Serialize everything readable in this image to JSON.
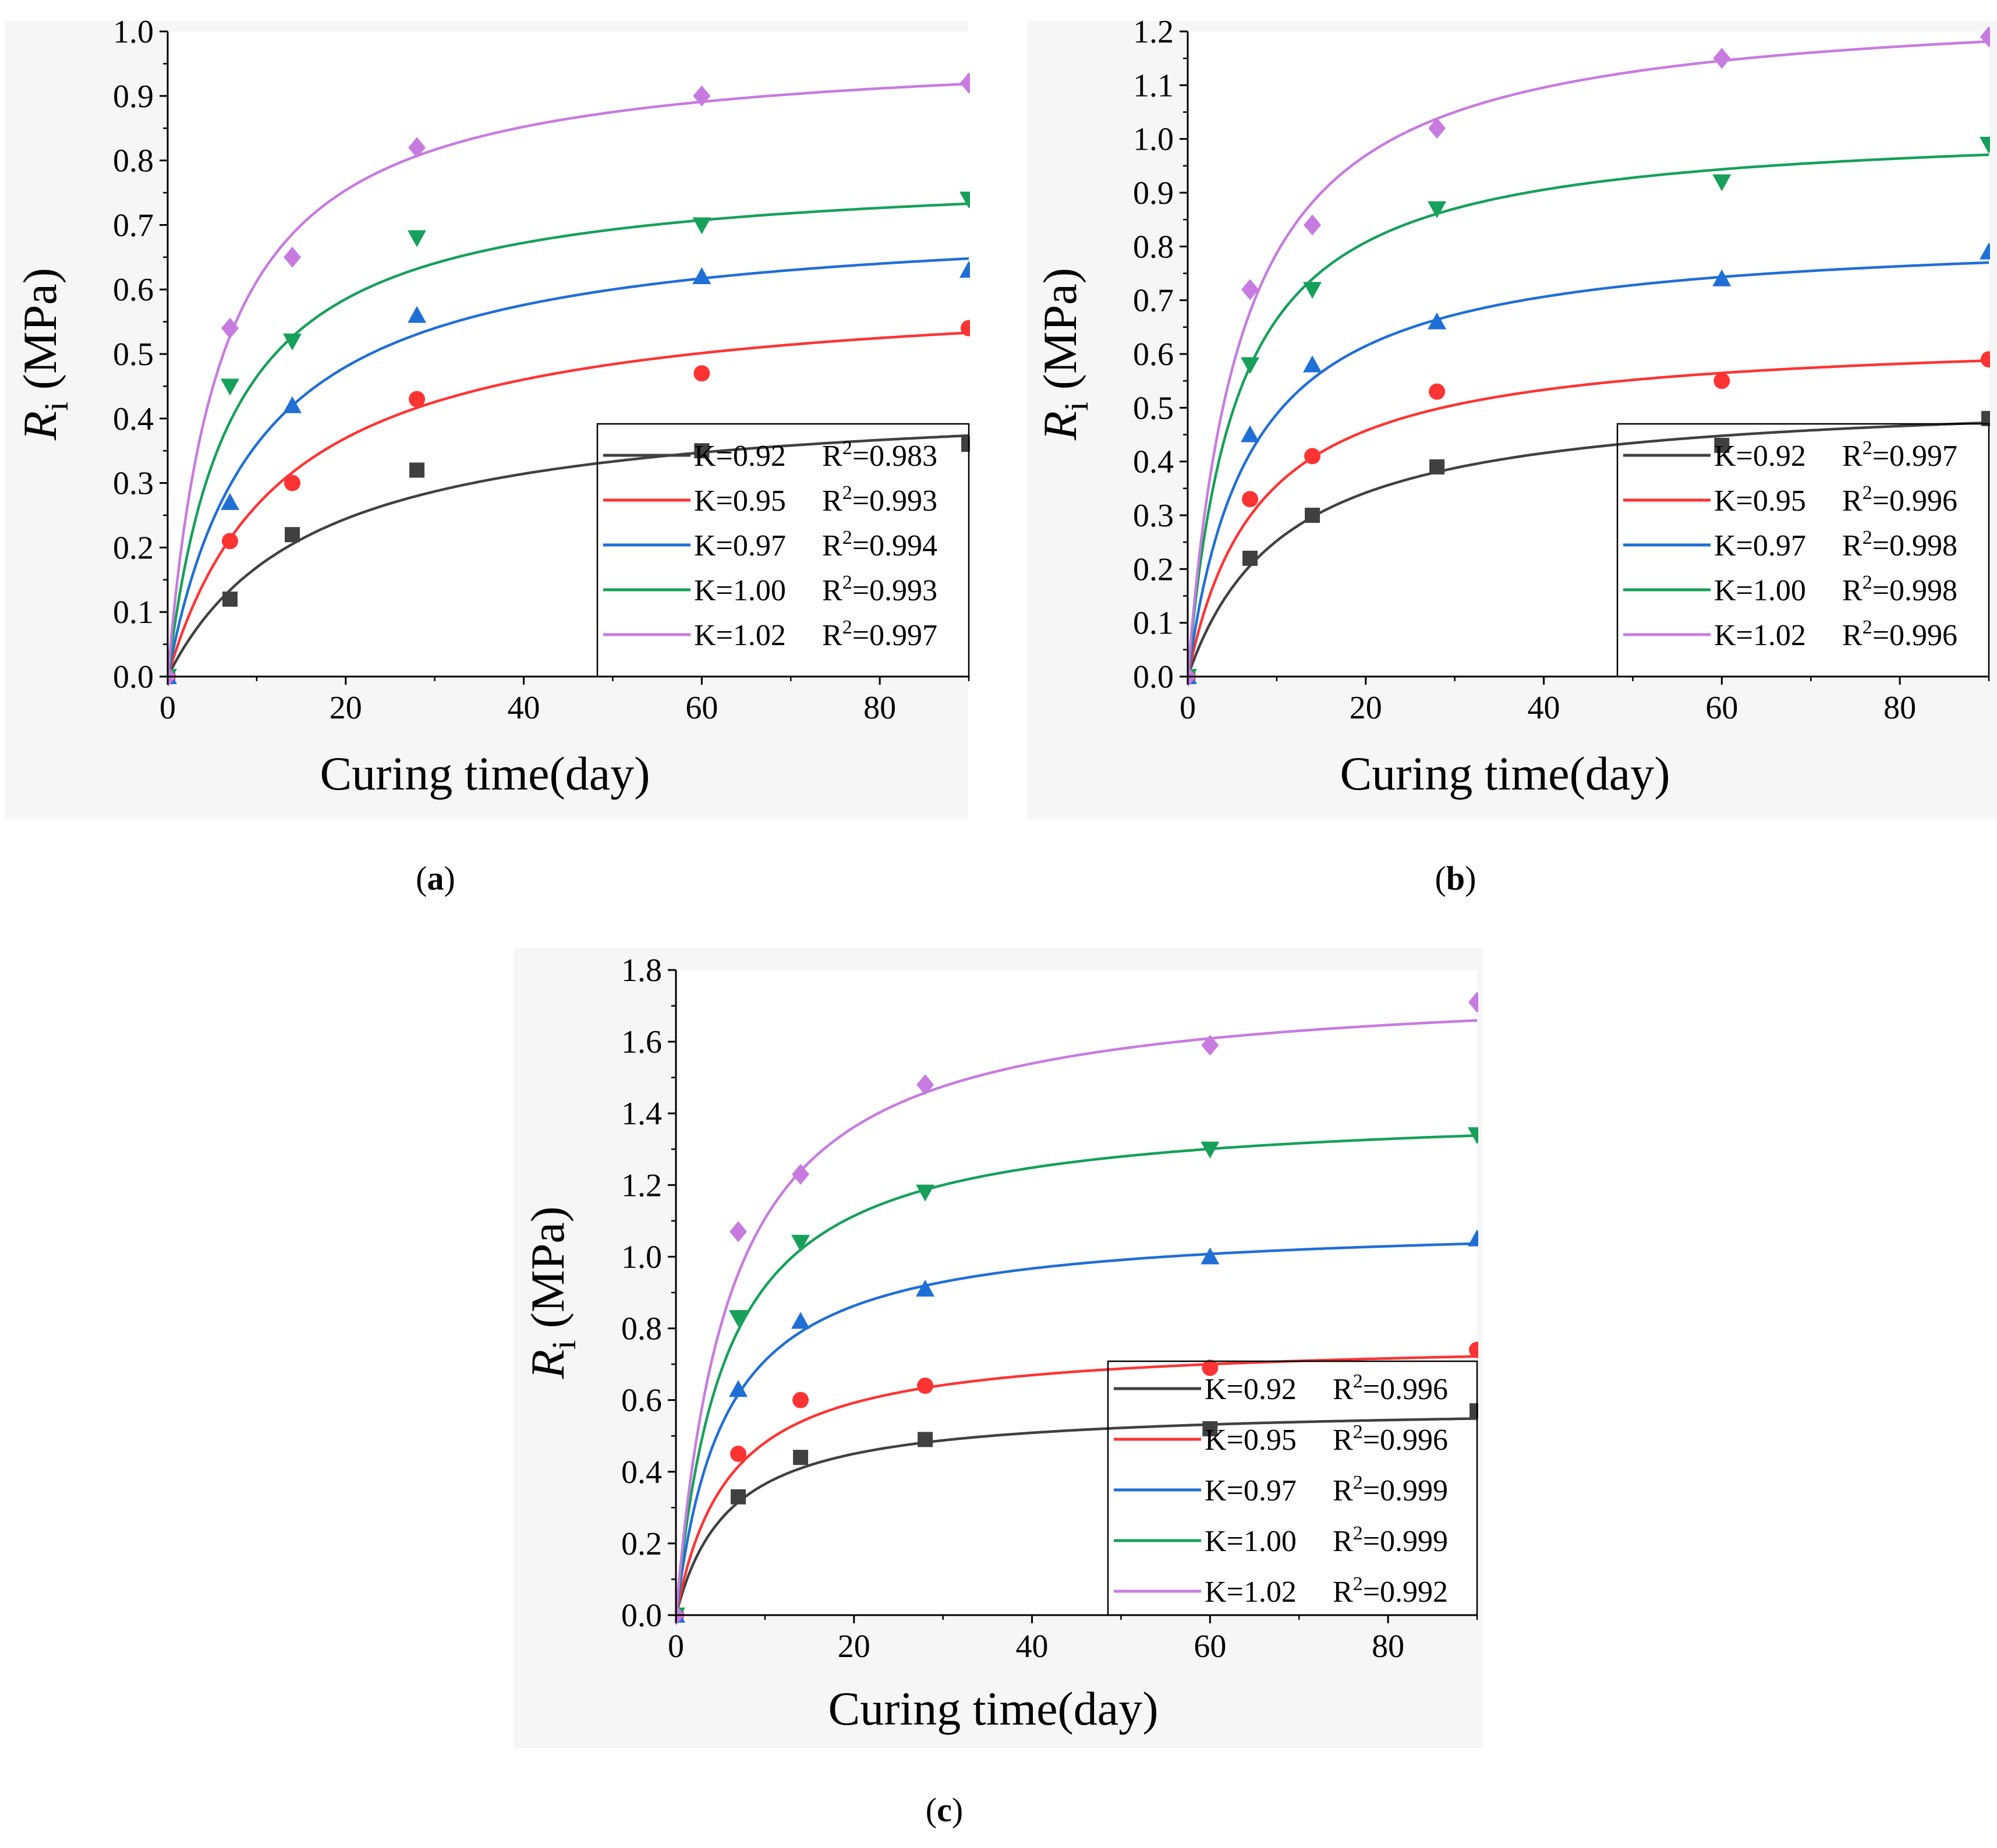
{
  "chart_data": [
    {
      "type": "scatter",
      "panel_label": "(a)",
      "xlabel": "Curing time(day)",
      "ylabel": "R",
      "ylabel_sub": "i",
      "ylabel_unit": " (MPa)",
      "xlim": [
        0,
        90
      ],
      "ylim": [
        0,
        1.0
      ],
      "xticks": [
        "0",
        "20",
        "40",
        "60",
        "80"
      ],
      "yticks": [
        "0.0",
        "0.1",
        "0.2",
        "0.3",
        "0.4",
        "0.5",
        "0.6",
        "0.7",
        "0.8",
        "0.9",
        "1.0"
      ],
      "legend_position": "bottom-right",
      "x": [
        0,
        7,
        14,
        28,
        60,
        90
      ],
      "series": [
        {
          "name": "K=0.92",
          "r2": "0.983",
          "color": "#404040",
          "marker": "square",
          "values": [
            0.0,
            0.12,
            0.22,
            0.32,
            0.35,
            0.36
          ],
          "fit": {
            "a": 0.44,
            "b": 16
          }
        },
        {
          "name": "K=0.95",
          "r2": "0.993",
          "color": "#ff3333",
          "marker": "circle",
          "values": [
            0.0,
            0.21,
            0.3,
            0.43,
            0.47,
            0.54
          ],
          "fit": {
            "a": 0.61,
            "b": 13
          }
        },
        {
          "name": "K=0.97",
          "r2": "0.994",
          "color": "#1f6fd6",
          "marker": "triangle-up",
          "values": [
            0.0,
            0.27,
            0.42,
            0.56,
            0.62,
            0.63
          ],
          "fit": {
            "a": 0.72,
            "b": 10
          }
        },
        {
          "name": "K=1.00",
          "r2": "0.993",
          "color": "#16a05a",
          "marker": "triangle-down",
          "values": [
            0.0,
            0.45,
            0.52,
            0.68,
            0.7,
            0.74
          ],
          "fit": {
            "a": 0.79,
            "b": 7
          }
        },
        {
          "name": "K=1.02",
          "r2": "0.997",
          "color": "#c77be0",
          "marker": "diamond",
          "values": [
            0.0,
            0.54,
            0.65,
            0.82,
            0.9,
            0.92
          ],
          "fit": {
            "a": 0.98,
            "b": 6
          }
        }
      ]
    },
    {
      "type": "scatter",
      "panel_label": "(b)",
      "xlabel": "Curing time(day)",
      "ylabel": "R",
      "ylabel_sub": "i",
      "ylabel_unit": " (MPa)",
      "xlim": [
        0,
        90
      ],
      "ylim": [
        0,
        1.2
      ],
      "xticks": [
        "0",
        "20",
        "40",
        "60",
        "80"
      ],
      "yticks": [
        "0.0",
        "0.1",
        "0.2",
        "0.3",
        "0.4",
        "0.5",
        "0.6",
        "0.7",
        "0.8",
        "0.9",
        "1.0",
        "1.1",
        "1.2"
      ],
      "legend_position": "bottom-right",
      "x": [
        0,
        7,
        14,
        28,
        60,
        90
      ],
      "series": [
        {
          "name": "K=0.92",
          "r2": "0.997",
          "color": "#404040",
          "marker": "square",
          "values": [
            0.0,
            0.22,
            0.3,
            0.39,
            0.43,
            0.48
          ],
          "fit": {
            "a": 0.53,
            "b": 11
          }
        },
        {
          "name": "K=0.95",
          "r2": "0.996",
          "color": "#ff3333",
          "marker": "circle",
          "values": [
            0.0,
            0.33,
            0.41,
            0.53,
            0.55,
            0.59
          ],
          "fit": {
            "a": 0.64,
            "b": 8
          }
        },
        {
          "name": "K=0.97",
          "r2": "0.998",
          "color": "#1f6fd6",
          "marker": "triangle-up",
          "values": [
            0.0,
            0.45,
            0.58,
            0.66,
            0.74,
            0.79
          ],
          "fit": {
            "a": 0.83,
            "b": 7
          }
        },
        {
          "name": "K=1.00",
          "r2": "0.998",
          "color": "#16a05a",
          "marker": "triangle-down",
          "values": [
            0.0,
            0.58,
            0.72,
            0.87,
            0.92,
            0.99
          ],
          "fit": {
            "a": 1.03,
            "b": 5.5
          }
        },
        {
          "name": "K=1.02",
          "r2": "0.996",
          "color": "#c77be0",
          "marker": "diamond",
          "values": [
            0.0,
            0.72,
            0.84,
            1.02,
            1.15,
            1.19
          ],
          "fit": {
            "a": 1.26,
            "b": 6
          }
        }
      ]
    },
    {
      "type": "scatter",
      "panel_label": "(c)",
      "xlabel": "Curing time(day)",
      "ylabel": "R",
      "ylabel_sub": "i",
      "ylabel_unit": " (MPa)",
      "xlim": [
        0,
        90
      ],
      "ylim": [
        0,
        1.8
      ],
      "xticks": [
        "0",
        "20",
        "40",
        "60",
        "80"
      ],
      "yticks": [
        "0.0",
        "0.2",
        "0.4",
        "0.6",
        "0.8",
        "1.0",
        "1.2",
        "1.4",
        "1.6",
        "1.8"
      ],
      "legend_position": "bottom-right",
      "x": [
        0,
        7,
        14,
        28,
        60,
        90
      ],
      "series": [
        {
          "name": "K=0.92",
          "r2": "0.996",
          "color": "#404040",
          "marker": "square",
          "values": [
            0.0,
            0.33,
            0.44,
            0.49,
            0.52,
            0.57
          ],
          "fit": {
            "a": 0.585,
            "b": 6
          }
        },
        {
          "name": "K=0.95",
          "r2": "0.996",
          "color": "#ff3333",
          "marker": "circle",
          "values": [
            0.0,
            0.45,
            0.6,
            0.64,
            0.69,
            0.74
          ],
          "fit": {
            "a": 0.77,
            "b": 6
          }
        },
        {
          "name": "K=0.97",
          "r2": "0.999",
          "color": "#1f6fd6",
          "marker": "triangle-up",
          "values": [
            0.0,
            0.63,
            0.82,
            0.91,
            1.0,
            1.05
          ],
          "fit": {
            "a": 1.1,
            "b": 5.5
          }
        },
        {
          "name": "K=1.00",
          "r2": "0.999",
          "color": "#16a05a",
          "marker": "triangle-down",
          "values": [
            0.0,
            0.83,
            1.04,
            1.18,
            1.3,
            1.34
          ],
          "fit": {
            "a": 1.42,
            "b": 5.5
          }
        },
        {
          "name": "K=1.02",
          "r2": "0.992",
          "color": "#c77be0",
          "marker": "diamond",
          "values": [
            0.0,
            1.07,
            1.23,
            1.48,
            1.59,
            1.71
          ],
          "fit": {
            "a": 1.77,
            "b": 6
          }
        }
      ]
    }
  ]
}
